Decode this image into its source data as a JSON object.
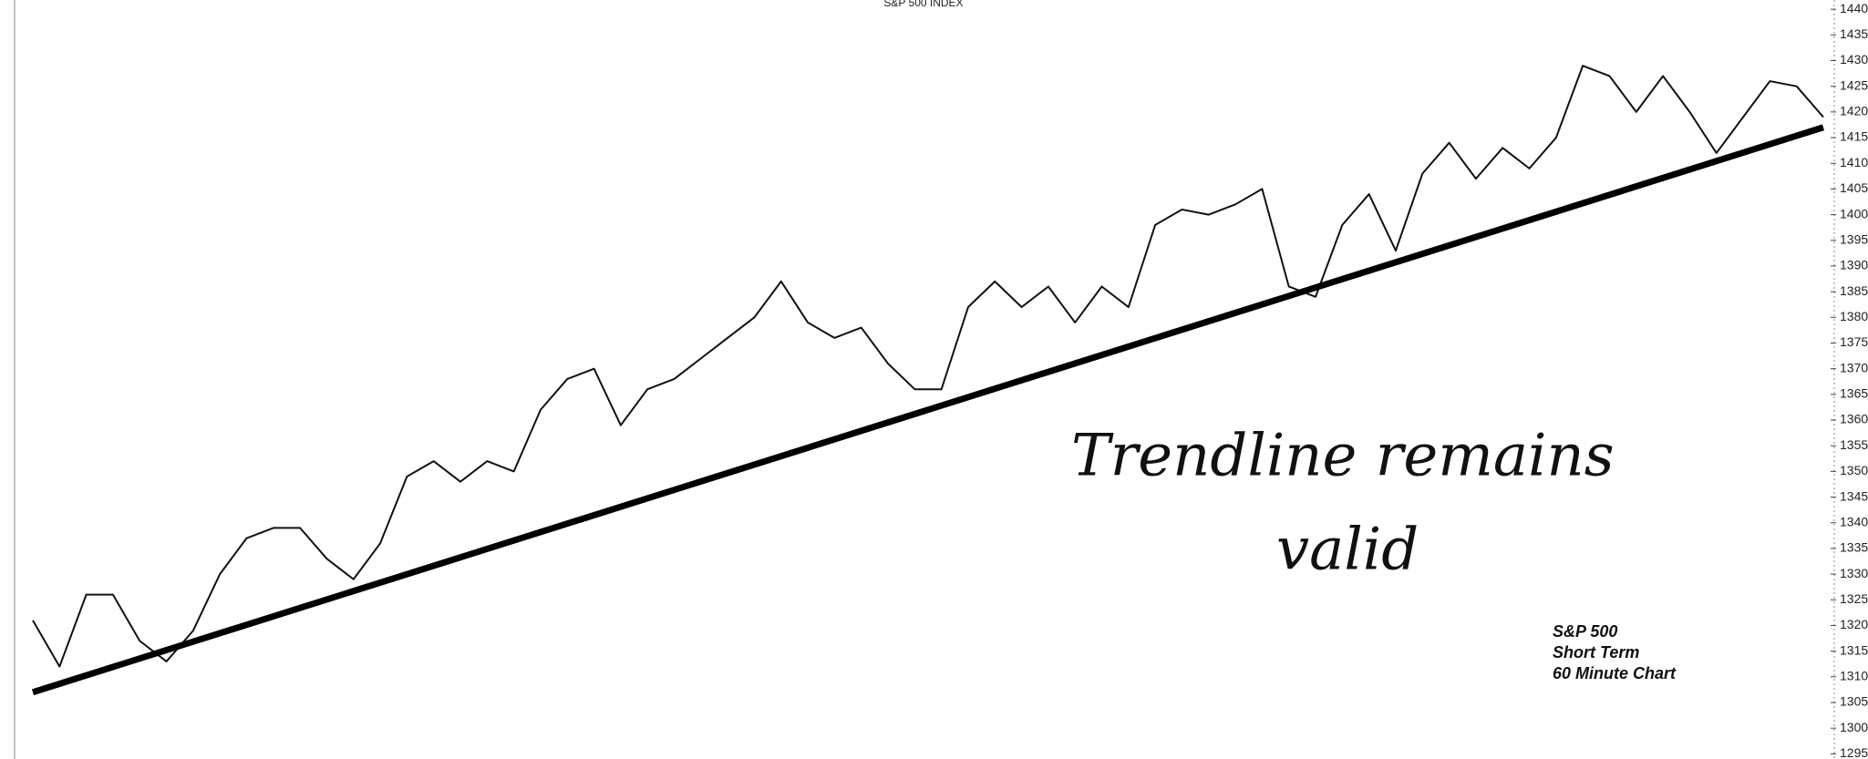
{
  "chart_data": {
    "type": "line",
    "title": "S&P 500 INDEX",
    "annotations": [
      "Trendline remains",
      "valid"
    ],
    "caption": [
      "S&P 500",
      "Short Term",
      "60 Minute Chart"
    ],
    "series": [
      {
        "name": "S&P 500",
        "color": "#111111",
        "values": [
          1321,
          1312,
          1326,
          1326,
          1317,
          1313,
          1319,
          1330,
          1337,
          1339,
          1339,
          1333,
          1329,
          1336,
          1349,
          1352,
          1348,
          1352,
          1350,
          1362,
          1368,
          1370,
          1359,
          1366,
          1368,
          1372,
          1376,
          1380,
          1387,
          1379,
          1376,
          1378,
          1371,
          1366,
          1366,
          1382,
          1387,
          1382,
          1386,
          1379,
          1386,
          1382,
          1398,
          1401,
          1400,
          1402,
          1405,
          1386,
          1384,
          1398,
          1404,
          1393,
          1408,
          1414,
          1407,
          1413,
          1409,
          1415,
          1429,
          1427,
          1420,
          1427,
          1420,
          1412,
          1419,
          1426,
          1425,
          1419
        ]
      },
      {
        "name": "Trendline",
        "color": "#000000",
        "values": [
          1307,
          1417
        ]
      }
    ],
    "ylim": [
      1294,
      1441.8
    ],
    "yticks": [
      1295,
      1300,
      1305,
      1310,
      1315,
      1320,
      1325,
      1330,
      1335,
      1340,
      1345,
      1350,
      1355,
      1360,
      1365,
      1370,
      1375,
      1380,
      1385,
      1390,
      1395,
      1400,
      1405,
      1410,
      1415,
      1420,
      1425,
      1430,
      1435,
      1440
    ],
    "grid": false
  }
}
